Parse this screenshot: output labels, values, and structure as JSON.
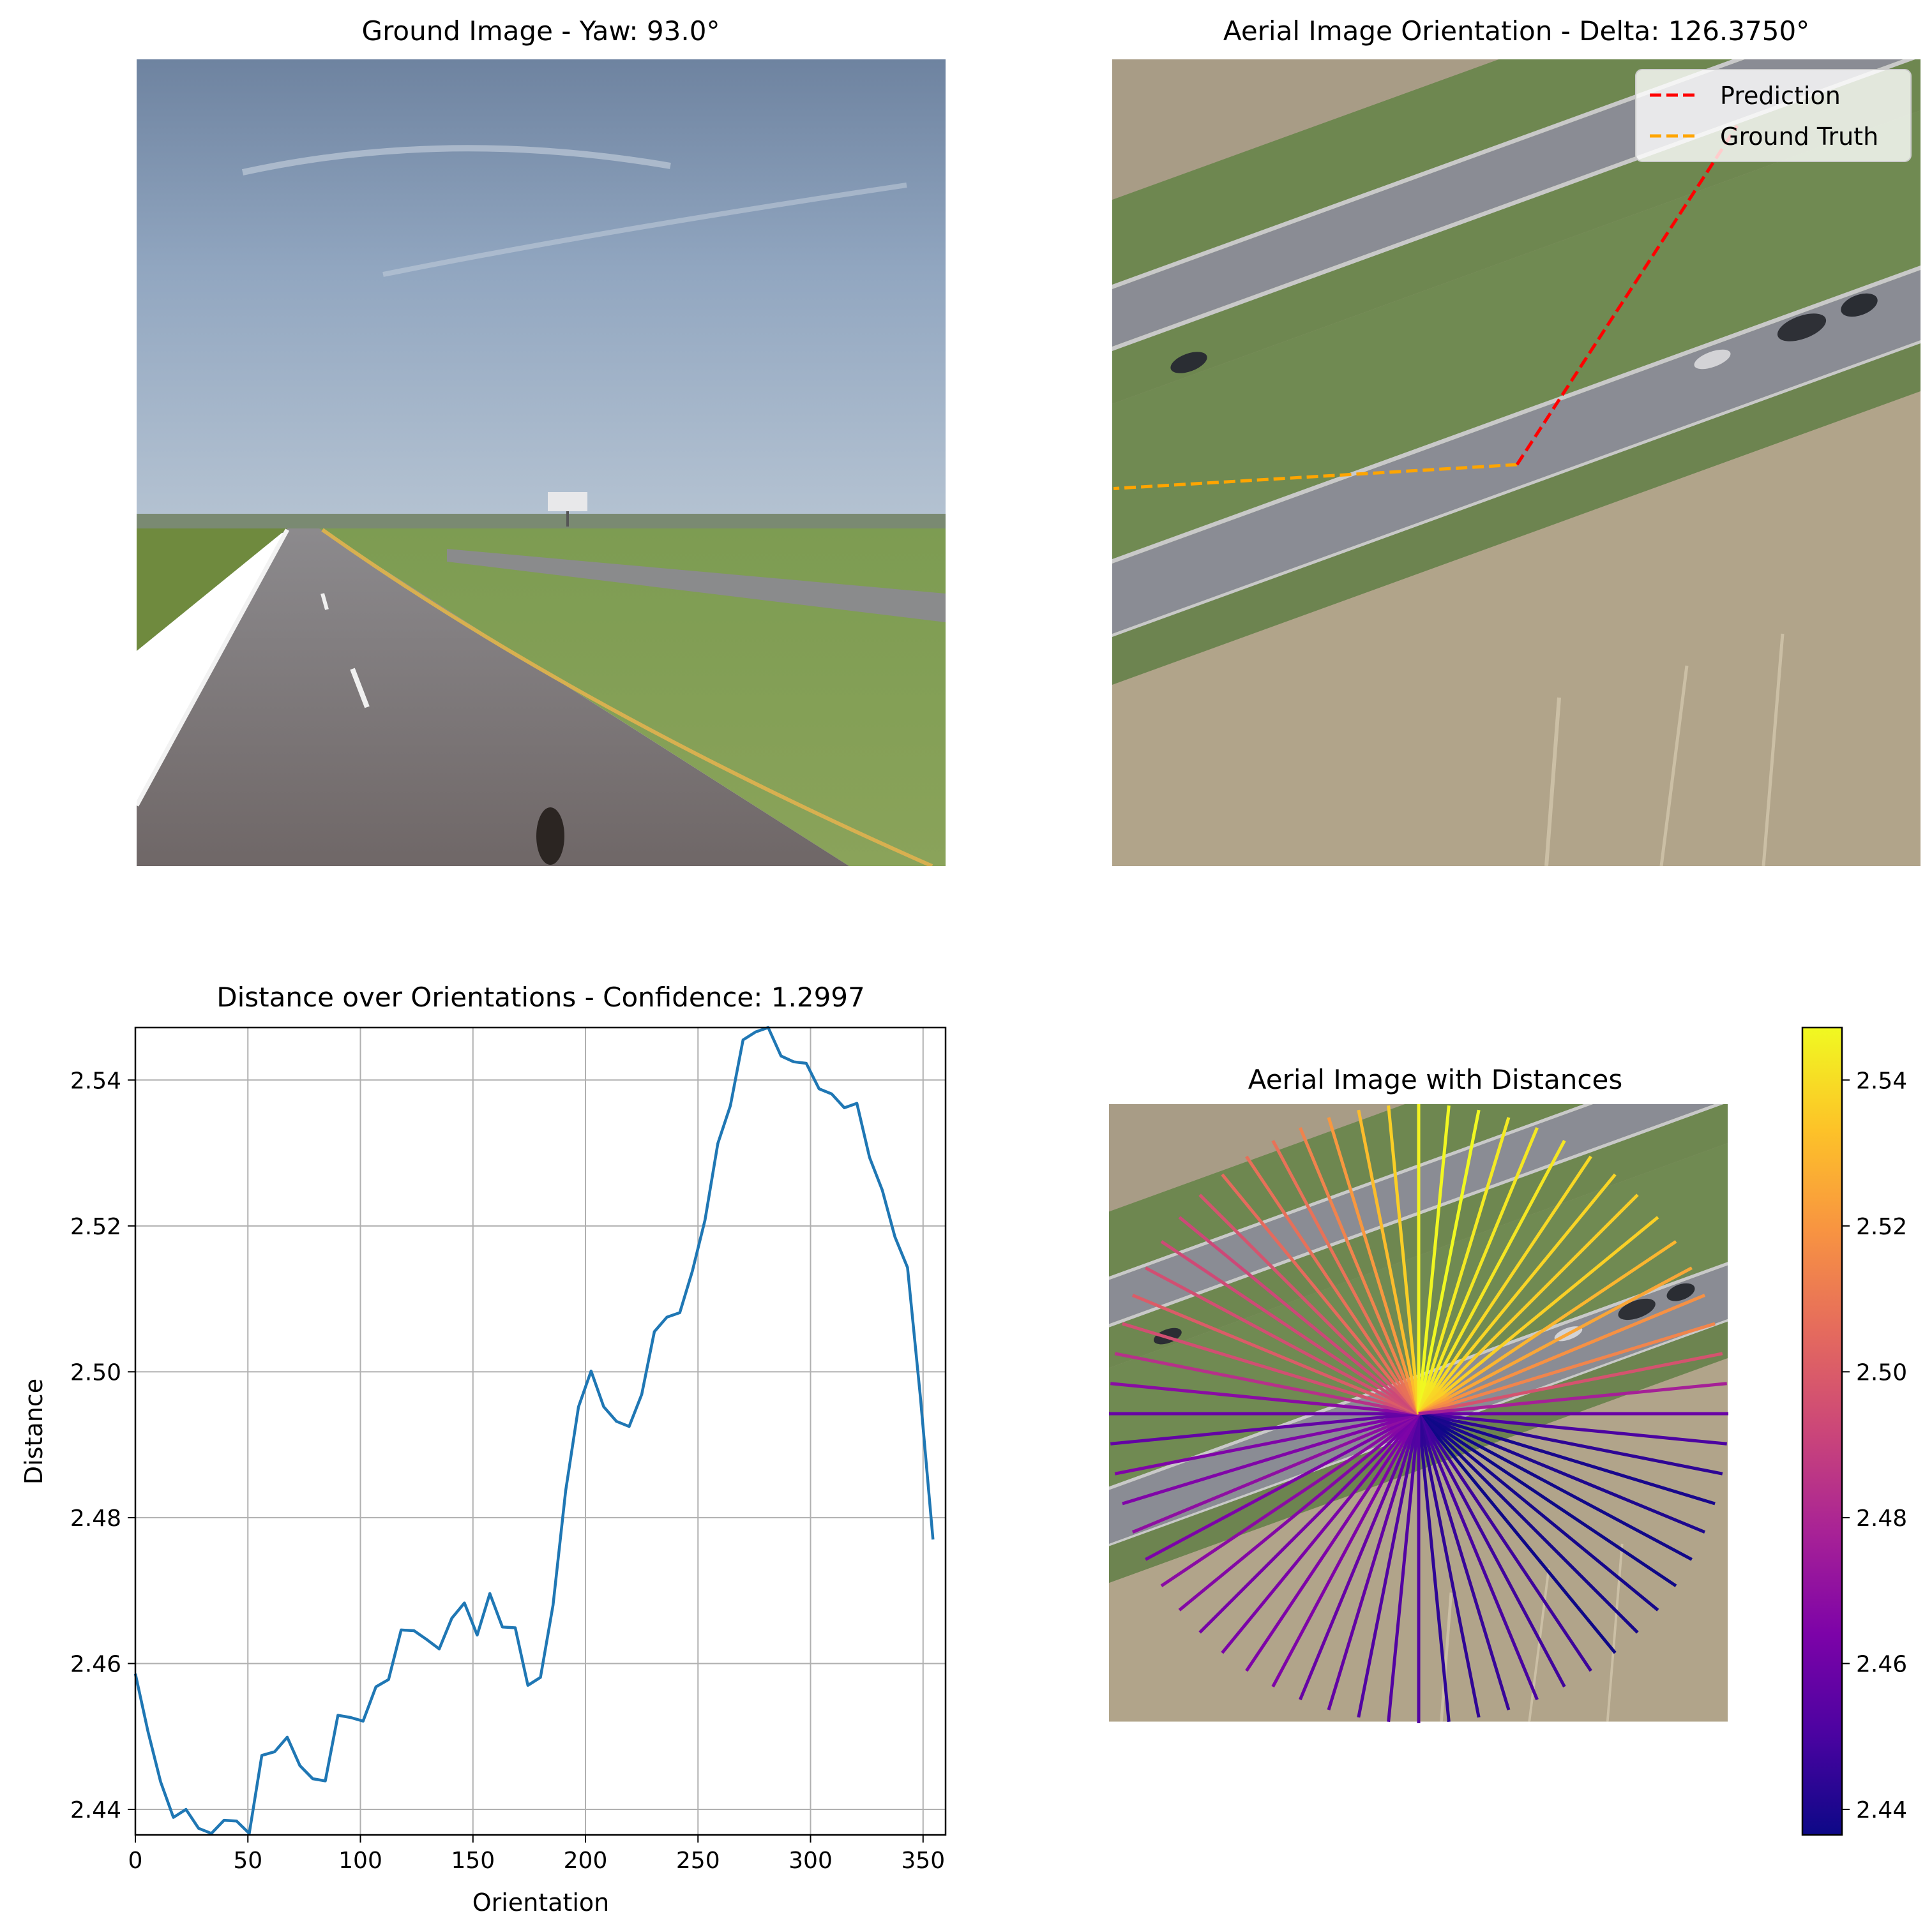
{
  "panels": {
    "ground": {
      "title": "Ground Image - Yaw: 93.0°"
    },
    "aerial": {
      "title": "Aerial Image Orientation - Delta: 126.3750°",
      "legend": [
        {
          "label": "Prediction",
          "color": "#ff0000"
        },
        {
          "label": "Ground Truth",
          "color": "#ffa500"
        }
      ],
      "prediction_angle_deg": 33.0,
      "ground_truth_angle_deg": 266.6
    },
    "polar": {
      "title": "Aerial Image with Distances"
    }
  },
  "chart_data": [
    {
      "type": "line",
      "title": "Distance over Orientations - Confidence: 1.2997",
      "xlabel": "Orientation",
      "ylabel": "Distance",
      "xlim": [
        0,
        360
      ],
      "ylim": [
        2.4365,
        2.5472
      ],
      "grid": true,
      "xticks": [
        "0",
        "50",
        "100",
        "150",
        "200",
        "250",
        "300",
        "350"
      ],
      "yticks": [
        "2.44",
        "2.46",
        "2.48",
        "2.50",
        "2.52",
        "2.54"
      ],
      "series": [
        {
          "color": "#1f77b4",
          "x": [
            0,
            5.6,
            11.2,
            16.9,
            22.5,
            28.1,
            33.8,
            39.4,
            45,
            50.6,
            56.2,
            61.9,
            67.5,
            73.1,
            78.8,
            84.4,
            90,
            95.6,
            101.2,
            106.9,
            112.5,
            118.1,
            123.8,
            129.4,
            135,
            140.6,
            146.2,
            151.9,
            157.5,
            163.1,
            168.8,
            174.4,
            180,
            185.6,
            191.2,
            196.9,
            202.5,
            208.1,
            213.8,
            219.4,
            225,
            230.6,
            236.2,
            241.9,
            247.5,
            253.1,
            258.8,
            264.4,
            270,
            275.6,
            281.2,
            286.9,
            292.5,
            298.1,
            303.8,
            309.4,
            315,
            320.6,
            326.2,
            331.9,
            337.5,
            343.1,
            348.8,
            354.4
          ],
          "y": [
            2.4586,
            2.4507,
            2.4438,
            2.4389,
            2.44,
            2.4374,
            2.4367,
            2.4385,
            2.4384,
            2.4367,
            2.4474,
            2.4479,
            2.4499,
            2.446,
            2.4442,
            2.4439,
            2.4529,
            2.4526,
            2.4521,
            2.4568,
            2.4578,
            2.4646,
            2.4645,
            2.4633,
            2.462,
            2.4662,
            2.4683,
            2.4639,
            2.4696,
            2.465,
            2.4649,
            2.457,
            2.4581,
            2.468,
            2.4837,
            2.4952,
            2.5001,
            2.4952,
            2.4932,
            2.4925,
            2.4969,
            2.5055,
            2.5075,
            2.5081,
            2.5138,
            2.5208,
            2.5313,
            2.5365,
            2.5455,
            2.5466,
            2.5472,
            2.5433,
            2.5425,
            2.5423,
            2.5388,
            2.5381,
            2.5362,
            2.5368,
            2.5294,
            2.5249,
            2.5185,
            2.5143,
            2.4966,
            2.477
          ]
        }
      ]
    },
    {
      "type": "colorbar",
      "colormap": "plasma",
      "ylim": [
        2.4365,
        2.5472
      ],
      "ticks": [
        "2.44",
        "2.46",
        "2.48",
        "2.50",
        "2.52",
        "2.54"
      ]
    }
  ]
}
